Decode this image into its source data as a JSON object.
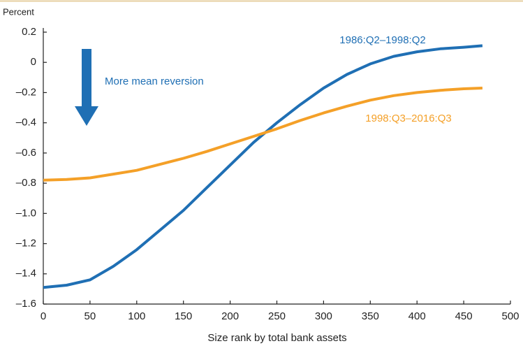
{
  "chart_data": {
    "type": "line",
    "y_axis_label": "Percent",
    "x_axis_label": "Size rank by total bank assets",
    "annotation": "More mean reversion",
    "x": [
      0,
      25,
      50,
      75,
      100,
      125,
      150,
      175,
      200,
      225,
      250,
      275,
      300,
      325,
      350,
      375,
      400,
      425,
      450,
      470
    ],
    "series": [
      {
        "name": "1986:Q2–1998:Q2",
        "color": "#1f6fb4",
        "values": [
          -1.49,
          -1.475,
          -1.44,
          -1.35,
          -1.24,
          -1.11,
          -0.98,
          -0.83,
          -0.68,
          -0.53,
          -0.4,
          -0.28,
          -0.17,
          -0.08,
          -0.01,
          0.04,
          0.07,
          0.09,
          0.1,
          0.11
        ]
      },
      {
        "name": "1998:Q3–2016:Q3",
        "color": "#f4a028",
        "values": [
          -0.78,
          -0.775,
          -0.765,
          -0.74,
          -0.715,
          -0.675,
          -0.635,
          -0.59,
          -0.54,
          -0.49,
          -0.44,
          -0.385,
          -0.335,
          -0.29,
          -0.25,
          -0.22,
          -0.2,
          -0.185,
          -0.175,
          -0.17
        ]
      }
    ],
    "xlim": [
      0,
      500
    ],
    "xticks": [
      0,
      50,
      100,
      150,
      200,
      250,
      300,
      350,
      400,
      450,
      500
    ],
    "ylim": [
      -1.6,
      0.2
    ],
    "yticks": [
      0.2,
      0,
      {
        "value": -0.2,
        "label": "–0.2"
      },
      {
        "value": -0.4,
        "label": "–0.4"
      },
      {
        "value": -0.6,
        "label": "–0.6"
      },
      {
        "value": -0.8,
        "label": "–0.8"
      },
      {
        "value": -1.0,
        "label": "–1.0"
      },
      {
        "value": -1.2,
        "label": "–1.2"
      },
      {
        "value": -1.4,
        "label": "–1.4"
      },
      {
        "value": -1.6,
        "label": "–1.6"
      }
    ],
    "grid": false
  }
}
